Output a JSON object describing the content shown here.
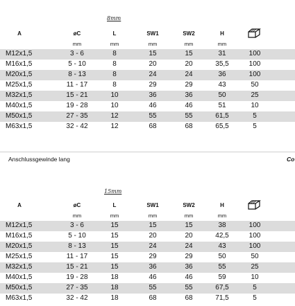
{
  "columns": [
    "A",
    "øC",
    "L",
    "SW1",
    "SW2",
    "H"
  ],
  "units": [
    "",
    "mm",
    "mm",
    "mm",
    "mm",
    "mm"
  ],
  "pack_icon": "box-icon",
  "section1": {
    "handwritten_label": "8mm",
    "rows": [
      [
        "M12x1,5",
        "3 - 6",
        "8",
        "15",
        "15",
        "31",
        "100"
      ],
      [
        "M16x1,5",
        "5 - 10",
        "8",
        "20",
        "20",
        "35,5",
        "100"
      ],
      [
        "M20x1,5",
        "8 - 13",
        "8",
        "24",
        "24",
        "36",
        "100"
      ],
      [
        "M25x1,5",
        "11 - 17",
        "8",
        "29",
        "29",
        "43",
        "50"
      ],
      [
        "M32x1,5",
        "15 - 21",
        "10",
        "36",
        "36",
        "50",
        "25"
      ],
      [
        "M40x1,5",
        "19 - 28",
        "10",
        "46",
        "46",
        "51",
        "10"
      ],
      [
        "M50x1,5",
        "27 - 35",
        "12",
        "55",
        "55",
        "61,5",
        "5"
      ],
      [
        "M63x1,5",
        "32 - 42",
        "12",
        "68",
        "68",
        "65,5",
        "5"
      ]
    ]
  },
  "band": {
    "title": "Anschlussgewinde  lang",
    "right": "Co"
  },
  "section2": {
    "handwritten_label": "15mm",
    "rows": [
      [
        "M12x1,5",
        "3 - 6",
        "15",
        "15",
        "15",
        "38",
        "100"
      ],
      [
        "M16x1,5",
        "5 - 10",
        "15",
        "20",
        "20",
        "42,5",
        "100"
      ],
      [
        "M20x1,5",
        "8 - 13",
        "15",
        "24",
        "24",
        "43",
        "100"
      ],
      [
        "M25x1,5",
        "11 - 17",
        "15",
        "29",
        "29",
        "50",
        "50"
      ],
      [
        "M32x1,5",
        "15 - 21",
        "15",
        "36",
        "36",
        "55",
        "25"
      ],
      [
        "M40x1,5",
        "19 - 28",
        "18",
        "46",
        "46",
        "59",
        "10"
      ],
      [
        "M50x1,5",
        "27 - 35",
        "18",
        "55",
        "55",
        "67,5",
        "5"
      ],
      [
        "M63x1,5",
        "32 - 42",
        "18",
        "68",
        "68",
        "71,5",
        "5"
      ]
    ]
  }
}
